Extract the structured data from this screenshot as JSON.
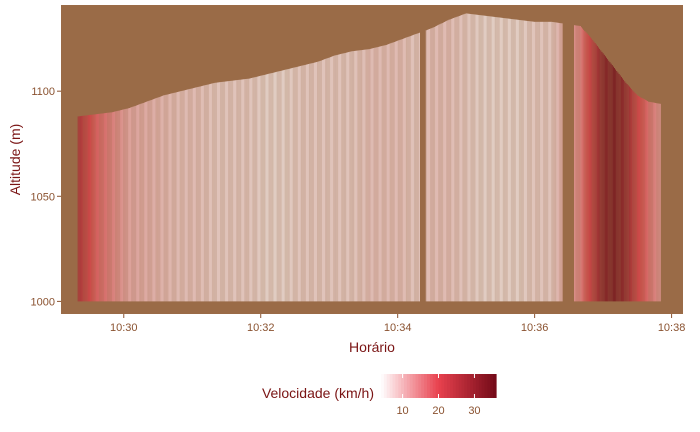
{
  "chart_data": {
    "type": "bar",
    "xlabel": "Horário",
    "ylabel": "Altitude (m)",
    "xlim": [
      "10:29:05",
      "10:38:10"
    ],
    "ylim": [
      994,
      1141
    ],
    "x_ticks": [
      "10:30",
      "10:32",
      "10:34",
      "10:36",
      "10:38"
    ],
    "y_ticks": [
      1000,
      1050,
      1100
    ],
    "grid": false,
    "legend": {
      "title": "Velocidade (km/h)",
      "position": "bottom",
      "ticks": [
        10,
        20,
        30
      ],
      "range": [
        4,
        36
      ],
      "colors": [
        "#ffffff",
        "#e8414e",
        "#730a18"
      ]
    },
    "colors": {
      "panel_background": "#9a6b47",
      "page_background": "#ffffff"
    },
    "bar_base": 1000,
    "gaps": [
      [
        "10:34:20",
        "10:34:25"
      ],
      [
        "10:36:25",
        "10:36:35"
      ]
    ],
    "points": [
      {
        "time": "10:29:20",
        "altitude": 1088,
        "speed": 28
      },
      {
        "time": "10:29:35",
        "altitude": 1089,
        "speed": 18
      },
      {
        "time": "10:29:50",
        "altitude": 1090,
        "speed": 14
      },
      {
        "time": "10:30:05",
        "altitude": 1092,
        "speed": 10
      },
      {
        "time": "10:30:20",
        "altitude": 1095,
        "speed": 9
      },
      {
        "time": "10:30:35",
        "altitude": 1098,
        "speed": 8
      },
      {
        "time": "10:30:50",
        "altitude": 1100,
        "speed": 7
      },
      {
        "time": "10:31:05",
        "altitude": 1102,
        "speed": 7
      },
      {
        "time": "10:31:20",
        "altitude": 1104,
        "speed": 6
      },
      {
        "time": "10:31:35",
        "altitude": 1105,
        "speed": 6
      },
      {
        "time": "10:31:50",
        "altitude": 1106,
        "speed": 6
      },
      {
        "time": "10:32:05",
        "altitude": 1108,
        "speed": 5
      },
      {
        "time": "10:32:20",
        "altitude": 1110,
        "speed": 5
      },
      {
        "time": "10:32:35",
        "altitude": 1112,
        "speed": 6
      },
      {
        "time": "10:32:50",
        "altitude": 1114,
        "speed": 6
      },
      {
        "time": "10:33:05",
        "altitude": 1117,
        "speed": 6
      },
      {
        "time": "10:33:20",
        "altitude": 1119,
        "speed": 6
      },
      {
        "time": "10:33:35",
        "altitude": 1120,
        "speed": 7
      },
      {
        "time": "10:33:50",
        "altitude": 1122,
        "speed": 7
      },
      {
        "time": "10:34:05",
        "altitude": 1125,
        "speed": 7
      },
      {
        "time": "10:34:15",
        "altitude": 1127,
        "speed": 6
      },
      {
        "time": "10:34:30",
        "altitude": 1130,
        "speed": 7
      },
      {
        "time": "10:34:45",
        "altitude": 1134,
        "speed": 7
      },
      {
        "time": "10:35:00",
        "altitude": 1137,
        "speed": 6
      },
      {
        "time": "10:35:15",
        "altitude": 1136,
        "speed": 5
      },
      {
        "time": "10:35:30",
        "altitude": 1135,
        "speed": 5
      },
      {
        "time": "10:35:45",
        "altitude": 1134,
        "speed": 5
      },
      {
        "time": "10:36:00",
        "altitude": 1133,
        "speed": 6
      },
      {
        "time": "10:36:15",
        "altitude": 1133,
        "speed": 6
      },
      {
        "time": "10:36:40",
        "altitude": 1131,
        "speed": 14
      },
      {
        "time": "10:36:50",
        "altitude": 1125,
        "speed": 24
      },
      {
        "time": "10:37:00",
        "altitude": 1118,
        "speed": 34
      },
      {
        "time": "10:37:10",
        "altitude": 1111,
        "speed": 36
      },
      {
        "time": "10:37:20",
        "altitude": 1104,
        "speed": 32
      },
      {
        "time": "10:37:30",
        "altitude": 1098,
        "speed": 22
      },
      {
        "time": "10:37:40",
        "altitude": 1095,
        "speed": 16
      },
      {
        "time": "10:37:50",
        "altitude": 1094,
        "speed": 12
      }
    ]
  }
}
